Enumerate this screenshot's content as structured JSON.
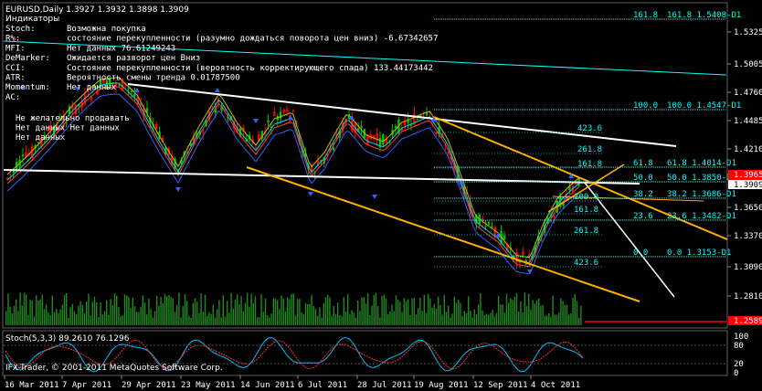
{
  "header": {
    "symbol_line": "EURUSD,Daily  1.3927 1.3932 1.3898 1.3909",
    "indicators_title": "Индикаторы"
  },
  "indicators": [
    {
      "name": "Stoch:",
      "value": "Возможна покупка"
    },
    {
      "name": "R%:",
      "value": "состояние перекупленности (разумно дождаться поворота цен вниз) -6.67342657"
    },
    {
      "name": "MFI:",
      "value": "Нет данных 76.61249243"
    },
    {
      "name": "DeMarker:",
      "value": "Ожидается разворот цен Вниз"
    },
    {
      "name": "CCI:",
      "value": "Состояние перекупленности (вероятность корректирующего спада) 133.44173442"
    },
    {
      "name": "ATR:",
      "value": "Вероятность смены тренда 0.01787500"
    },
    {
      "name": "Momentum:",
      "value": "Нет данных"
    },
    {
      "name": "AC:",
      "value": ""
    }
  ],
  "ac_notes": [
    "Не желательно продавать",
    "Нет данных Нет данных",
    "Нет данных"
  ],
  "price_axis": {
    "ticks": [
      "1.5325",
      "1.5005",
      "1.4760",
      "1.4485",
      "1.4210",
      "1.3935",
      "1.3650",
      "1.3370",
      "1.3090",
      "1.2810"
    ],
    "current_price": "1.3909",
    "highlight_price": "1.3965",
    "bottom_price": "1.2589"
  },
  "fib_upper": [
    {
      "left": "161.8",
      "right": "161.8 1.5408-D1"
    },
    {
      "left": "100.0",
      "right": "100.0 1.4547-D1"
    },
    {
      "left": "61.8",
      "right": "61.8 1.4014-D1"
    },
    {
      "left": "50.0",
      "right": "50.0 1.3850-D1"
    },
    {
      "left": "38.2",
      "right": "38.2 1.3686-D1"
    },
    {
      "left": "23.6",
      "right": "23.6 1.3482-D1"
    },
    {
      "left": "0.0",
      "right": "0.0 1.3153-D1"
    }
  ],
  "fib_labels": [
    "423.6",
    "261.8",
    "161.8",
    "100.0",
    "61.8",
    "161.8",
    "261.8",
    "423.6"
  ],
  "stoch": {
    "label": "Stoch(5,3,3) 89.2610 76.1296",
    "levels": [
      "100",
      "80",
      "20",
      "0"
    ]
  },
  "copyright": "IFX-Trader, © 2001-2011 MetaQuotes Software Corp.",
  "time_axis": [
    "16 Mar 2011",
    "7 Apr 2011",
    "29 Apr 2011",
    "23 May 2011",
    "14 Jun 2011",
    "6 Jul 2011",
    "28 Jul 2011",
    "19 Aug 2011",
    "12 Sep 2011",
    "4 Oct 2011"
  ],
  "colors": {
    "background": "#000000",
    "bull_candle": "#00c000",
    "bear_candle": "#ff0000",
    "fib": "#00ffff",
    "channel": "#ffb000",
    "trendline": "#ffffff",
    "ma_blue": "#3060ff",
    "stoch_main": "#00bfff",
    "stoch_signal": "#ff3030"
  }
}
